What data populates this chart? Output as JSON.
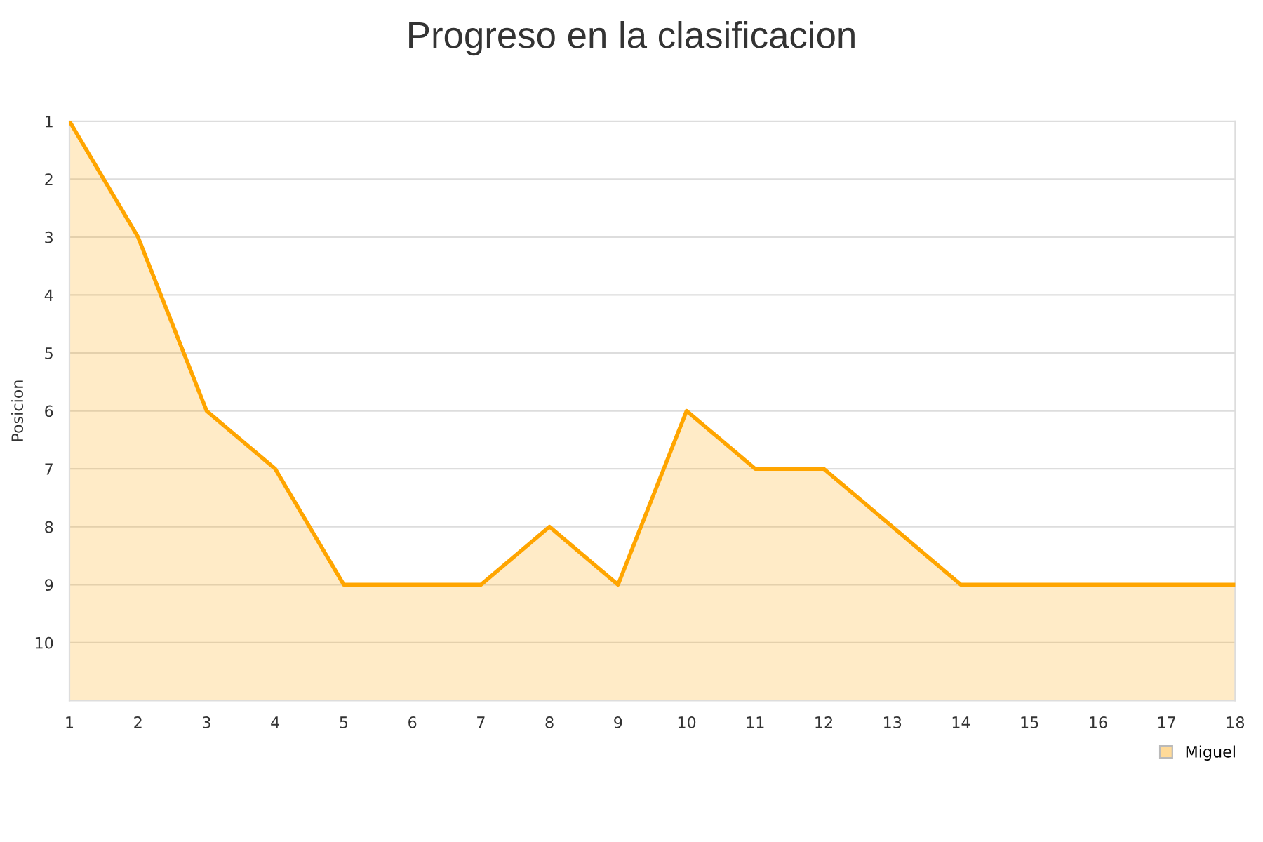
{
  "chart_data": {
    "type": "area",
    "title": "Progreso en la clasificacion",
    "ylabel": "Posicion",
    "x": [
      1,
      2,
      3,
      4,
      5,
      6,
      7,
      8,
      9,
      10,
      11,
      12,
      13,
      14,
      15,
      16,
      17,
      18
    ],
    "series": [
      {
        "name": "Miguel",
        "color": "#ffa500",
        "values": [
          1,
          3,
          6,
          7,
          9,
          9,
          9,
          8,
          9,
          6,
          7,
          7,
          8,
          9,
          9,
          9,
          9,
          9
        ]
      }
    ],
    "xlim": [
      1,
      18
    ],
    "xticks": [
      1,
      2,
      3,
      4,
      5,
      6,
      7,
      8,
      9,
      10,
      11,
      12,
      13,
      14,
      15,
      16,
      17,
      18
    ],
    "ylim": [
      11,
      1
    ],
    "yticks": [
      1,
      2,
      3,
      4,
      5,
      6,
      7,
      8,
      9,
      10
    ],
    "grid": "y",
    "legend": "bottom right"
  }
}
